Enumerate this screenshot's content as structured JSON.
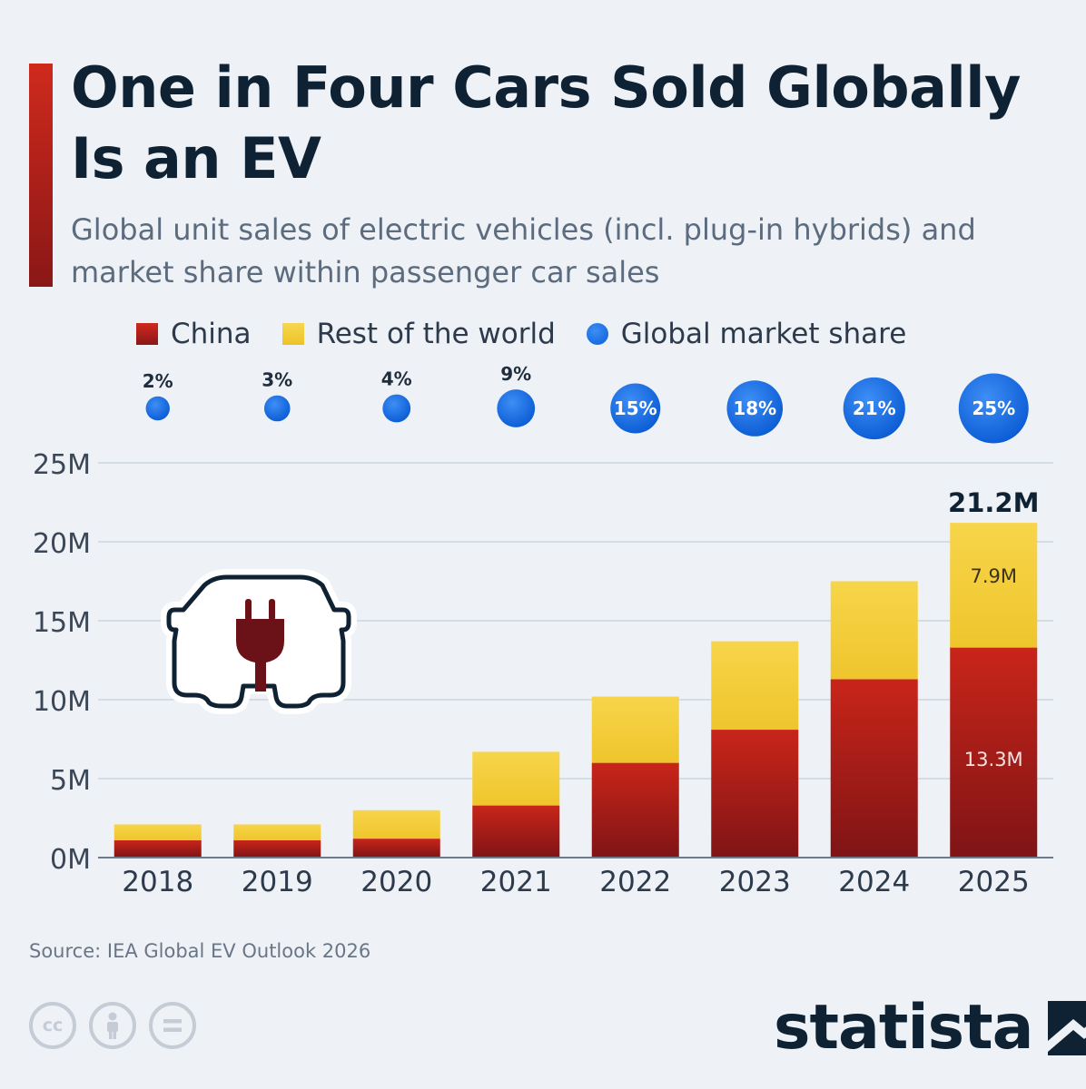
{
  "header": {
    "title": "One in Four Cars Sold Globally Is an EV",
    "subtitle": "Global unit sales of electric vehicles (incl. plug-in hybrids) and market share within passenger car sales"
  },
  "legend": {
    "china": "China",
    "rest": "Rest of the world",
    "share": "Global market share"
  },
  "colors": {
    "china": "#b51f18",
    "rest": "#f2ca2f",
    "share": "#1a73e8",
    "accent": "#c62619",
    "title": "#0f2234"
  },
  "chart_data": {
    "type": "bar",
    "stacked": true,
    "categories": [
      "2018",
      "2019",
      "2020",
      "2021",
      "2022",
      "2023",
      "2024",
      "2025"
    ],
    "series": [
      {
        "name": "China",
        "values": [
          1.1,
          1.1,
          1.2,
          3.3,
          6.0,
          8.1,
          11.3,
          13.3
        ]
      },
      {
        "name": "Rest of the world",
        "values": [
          1.0,
          1.0,
          1.8,
          3.4,
          4.2,
          5.6,
          6.2,
          7.9
        ]
      }
    ],
    "market_share": {
      "name": "Global market share",
      "values": [
        2,
        3,
        4,
        9,
        15,
        18,
        21,
        25
      ],
      "labels": [
        "2%",
        "3%",
        "4%",
        "9%",
        "15%",
        "18%",
        "21%",
        "25%"
      ]
    },
    "y_ticks": [
      "0M",
      "5M",
      "10M",
      "15M",
      "20M",
      "25M"
    ],
    "ylim": [
      0,
      25
    ],
    "unit": "M",
    "annotations": {
      "total_2025": "21.2M",
      "rest_2025": "7.9M",
      "china_2025": "13.3M"
    },
    "grid": true,
    "legend_position": "top"
  },
  "footer": {
    "source": "Source: IEA Global EV Outlook 2026",
    "brand": "statista",
    "cc_icons": [
      "cc-icon",
      "person-icon",
      "equals-icon"
    ],
    "cc_text": "cc"
  }
}
